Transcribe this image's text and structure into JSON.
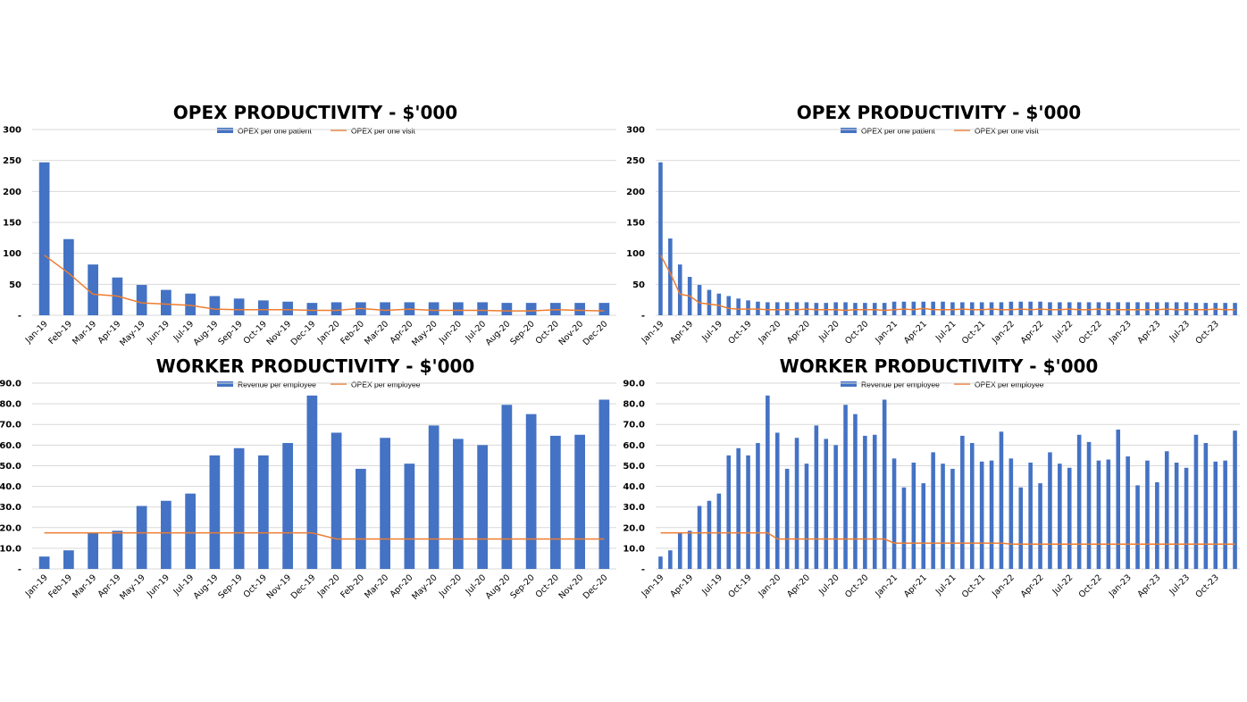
{
  "colors": {
    "bar": "#4472c4",
    "line": "#ed7d31",
    "grid": "#d9d9d9"
  },
  "chart_data": [
    {
      "id": "c1",
      "type": "bar",
      "title": "OPEX PRODUCTIVITY - $'000",
      "legend": [
        "OPEX per one patient",
        "OPEX per one visit"
      ],
      "legend_placement": "top-center",
      "grid": true,
      "ylim": [
        0,
        300
      ],
      "yticks": [
        0,
        50,
        100,
        150,
        200,
        250,
        300
      ],
      "ytick_labels": [
        "-",
        "50",
        "100",
        "150",
        "200",
        "250",
        "300"
      ],
      "categories": [
        "Jan-19",
        "Feb-19",
        "Mar-19",
        "Apr-19",
        "May-19",
        "Jun-19",
        "Jul-19",
        "Aug-19",
        "Sep-19",
        "Oct-19",
        "Nov-19",
        "Dec-19",
        "Jan-20",
        "Feb-20",
        "Mar-20",
        "Apr-20",
        "May-20",
        "Jun-20",
        "Jul-20",
        "Aug-20",
        "Sep-20",
        "Oct-20",
        "Nov-20",
        "Dec-20"
      ],
      "xtick_every": 1,
      "series": [
        {
          "name": "OPEX per one patient",
          "kind": "bar",
          "values": [
            247,
            123,
            82,
            61,
            49,
            41,
            35,
            31,
            27,
            24,
            22,
            20,
            21,
            21,
            21,
            21,
            21,
            21,
            21,
            20,
            20,
            20,
            20,
            20
          ]
        },
        {
          "name": "OPEX per one visit",
          "kind": "line",
          "values": [
            97,
            68,
            34,
            31,
            20,
            18,
            16,
            10,
            9,
            9,
            9,
            8,
            8,
            11,
            8,
            10,
            8,
            8,
            8,
            7,
            7,
            9,
            8,
            7
          ]
        }
      ]
    },
    {
      "id": "c2",
      "type": "bar",
      "title": "OPEX PRODUCTIVITY - $'000",
      "legend": [
        "OPEX per one patient",
        "OPEX per one visit"
      ],
      "legend_placement": "top-center",
      "grid": true,
      "ylim": [
        0,
        300
      ],
      "yticks": [
        0,
        50,
        100,
        150,
        200,
        250,
        300
      ],
      "ytick_labels": [
        "-",
        "50",
        "100",
        "150",
        "200",
        "250",
        "300"
      ],
      "categories": [
        "Jan-19",
        "Feb-19",
        "Mar-19",
        "Apr-19",
        "May-19",
        "Jun-19",
        "Jul-19",
        "Aug-19",
        "Sep-19",
        "Oct-19",
        "Nov-19",
        "Dec-19",
        "Jan-20",
        "Feb-20",
        "Mar-20",
        "Apr-20",
        "May-20",
        "Jun-20",
        "Jul-20",
        "Aug-20",
        "Sep-20",
        "Oct-20",
        "Nov-20",
        "Dec-20",
        "Jan-21",
        "Feb-21",
        "Mar-21",
        "Apr-21",
        "May-21",
        "Jun-21",
        "Jul-21",
        "Aug-21",
        "Sep-21",
        "Oct-21",
        "Nov-21",
        "Dec-21",
        "Jan-22",
        "Feb-22",
        "Mar-22",
        "Apr-22",
        "May-22",
        "Jun-22",
        "Jul-22",
        "Aug-22",
        "Sep-22",
        "Oct-22",
        "Nov-22",
        "Dec-22",
        "Jan-23",
        "Feb-23",
        "Mar-23",
        "Apr-23",
        "May-23",
        "Jun-23",
        "Jul-23",
        "Aug-23",
        "Sep-23",
        "Oct-23",
        "Nov-23",
        "Dec-23"
      ],
      "xtick_every": 3,
      "series": [
        {
          "name": "OPEX per one patient",
          "kind": "bar",
          "values": [
            247,
            124,
            82,
            62,
            49,
            41,
            35,
            31,
            27,
            24,
            22,
            21,
            21,
            21,
            21,
            21,
            20,
            20,
            21,
            21,
            20,
            20,
            20,
            20,
            22,
            22,
            22,
            22,
            22,
            22,
            21,
            21,
            21,
            21,
            21,
            21,
            22,
            22,
            22,
            22,
            21,
            21,
            21,
            21,
            21,
            21,
            21,
            21,
            21,
            21,
            21,
            21,
            21,
            21,
            21,
            20,
            20,
            20,
            20,
            20
          ]
        },
        {
          "name": "OPEX per one visit",
          "kind": "line",
          "values": [
            97,
            68,
            34,
            31,
            20,
            18,
            16,
            11,
            10,
            10,
            10,
            9,
            9,
            9,
            9,
            10,
            9,
            9,
            9,
            8,
            9,
            9,
            9,
            8,
            9,
            10,
            9,
            11,
            9,
            9,
            9,
            10,
            9,
            9,
            10,
            9,
            9,
            10,
            9,
            10,
            9,
            9,
            10,
            9,
            9,
            10,
            9,
            9,
            9,
            9,
            9,
            9,
            10,
            9,
            9,
            9,
            9,
            10,
            9,
            9
          ]
        }
      ]
    },
    {
      "id": "c3",
      "type": "bar",
      "title": "WORKER PRODUCTIVITY - $'000",
      "legend": [
        "Revenue per employee",
        "OPEX per employee"
      ],
      "legend_placement": "top-center",
      "grid": true,
      "ylim": [
        0,
        90
      ],
      "yticks": [
        0,
        10,
        20,
        30,
        40,
        50,
        60,
        70,
        80,
        90
      ],
      "ytick_labels": [
        "-",
        "10.0",
        "20.0",
        "30.0",
        "40.0",
        "50.0",
        "60.0",
        "70.0",
        "80.0",
        "90.0"
      ],
      "categories": [
        "Jan-19",
        "Feb-19",
        "Mar-19",
        "Apr-19",
        "May-19",
        "Jun-19",
        "Jul-19",
        "Aug-19",
        "Sep-19",
        "Oct-19",
        "Nov-19",
        "Dec-19",
        "Jan-20",
        "Feb-20",
        "Mar-20",
        "Apr-20",
        "May-20",
        "Jun-20",
        "Jul-20",
        "Aug-20",
        "Sep-20",
        "Oct-20",
        "Nov-20",
        "Dec-20"
      ],
      "xtick_every": 1,
      "series": [
        {
          "name": "Revenue per employee",
          "kind": "bar",
          "values": [
            6,
            9,
            17.5,
            18.5,
            30.5,
            33,
            36.5,
            55,
            58.5,
            55,
            61,
            84,
            66,
            48.5,
            63.5,
            51,
            69.5,
            63,
            60,
            79.5,
            75,
            64.5,
            65,
            82
          ]
        },
        {
          "name": "OPEX per employee",
          "kind": "line",
          "values": [
            17.5,
            17.5,
            17.5,
            17.5,
            17.5,
            17.5,
            17.5,
            17.5,
            17.5,
            17.5,
            17.5,
            17.5,
            14.5,
            14.5,
            14.5,
            14.5,
            14.5,
            14.5,
            14.5,
            14.5,
            14.5,
            14.5,
            14.5,
            14.5
          ]
        }
      ]
    },
    {
      "id": "c4",
      "type": "bar",
      "title": "WORKER PRODUCTIVITY - $'000",
      "legend": [
        "Revenue per employee",
        "OPEX per employee"
      ],
      "legend_placement": "top-center",
      "grid": true,
      "ylim": [
        0,
        90
      ],
      "yticks": [
        0,
        10,
        20,
        30,
        40,
        50,
        60,
        70,
        80,
        90
      ],
      "ytick_labels": [
        "-",
        "10.0",
        "20.0",
        "30.0",
        "40.0",
        "50.0",
        "60.0",
        "70.0",
        "80.0",
        "90.0"
      ],
      "categories": [
        "Jan-19",
        "Feb-19",
        "Mar-19",
        "Apr-19",
        "May-19",
        "Jun-19",
        "Jul-19",
        "Aug-19",
        "Sep-19",
        "Oct-19",
        "Nov-19",
        "Dec-19",
        "Jan-20",
        "Feb-20",
        "Mar-20",
        "Apr-20",
        "May-20",
        "Jun-20",
        "Jul-20",
        "Aug-20",
        "Sep-20",
        "Oct-20",
        "Nov-20",
        "Dec-20",
        "Jan-21",
        "Feb-21",
        "Mar-21",
        "Apr-21",
        "May-21",
        "Jun-21",
        "Jul-21",
        "Aug-21",
        "Sep-21",
        "Oct-21",
        "Nov-21",
        "Dec-21",
        "Jan-22",
        "Feb-22",
        "Mar-22",
        "Apr-22",
        "May-22",
        "Jun-22",
        "Jul-22",
        "Aug-22",
        "Sep-22",
        "Oct-22",
        "Nov-22",
        "Dec-22",
        "Jan-23",
        "Feb-23",
        "Mar-23",
        "Apr-23",
        "May-23",
        "Jun-23",
        "Jul-23",
        "Aug-23",
        "Sep-23",
        "Oct-23",
        "Nov-23",
        "Dec-23"
      ],
      "xtick_every": 3,
      "series": [
        {
          "name": "Revenue per employee",
          "kind": "bar",
          "values": [
            6,
            9,
            17.5,
            18.5,
            30.5,
            33,
            36.5,
            55,
            58.5,
            55,
            61,
            84,
            66,
            48.5,
            63.5,
            51,
            69.5,
            63,
            60,
            79.5,
            75,
            64.5,
            65,
            82,
            53.5,
            39.5,
            51.5,
            41.5,
            56.5,
            51,
            48.5,
            64.5,
            61,
            52,
            52.5,
            66.5,
            53.5,
            39.5,
            51.5,
            41.5,
            56.5,
            51,
            49,
            65,
            61.5,
            52.5,
            53,
            67.5,
            54.5,
            40.5,
            52.5,
            42,
            57,
            51.5,
            49,
            65,
            61,
            52,
            52.5,
            67
          ]
        },
        {
          "name": "OPEX per employee",
          "kind": "line",
          "values": [
            17.5,
            17.5,
            17.5,
            17.5,
            17.5,
            17.5,
            17.5,
            17.5,
            17.5,
            17.5,
            17.5,
            17.5,
            14.5,
            14.5,
            14.5,
            14.5,
            14.5,
            14.5,
            14.5,
            14.5,
            14.5,
            14.5,
            14.5,
            14.5,
            12.5,
            12.5,
            12.5,
            12.5,
            12.5,
            12.5,
            12.5,
            12.5,
            12.5,
            12.5,
            12.5,
            12.5,
            12,
            12,
            12,
            12,
            12,
            12,
            12,
            12,
            12,
            12,
            12,
            12,
            12,
            12,
            12,
            12,
            12,
            12,
            12,
            12,
            12,
            12,
            12,
            12
          ]
        }
      ]
    }
  ]
}
